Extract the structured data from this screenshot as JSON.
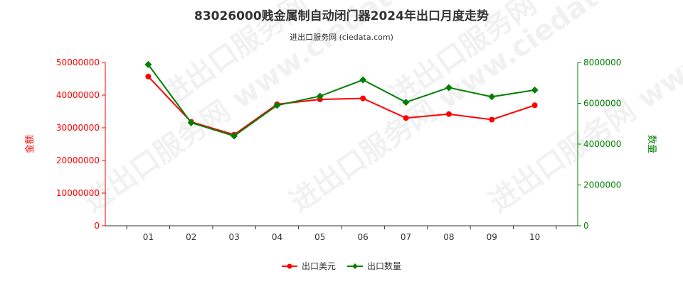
{
  "chart_data": {
    "type": "line",
    "title": "83026000贱金属制自动闭门器2024年出口月度走势",
    "subtitle": "进出口服务网 (ciedata.com)",
    "categories": [
      "01",
      "02",
      "03",
      "04",
      "05",
      "06",
      "07",
      "08",
      "09",
      "10"
    ],
    "ylabel_left": "金额",
    "ylabel_right": "数量",
    "ylim_left": [
      0,
      50000000
    ],
    "ylim_right": [
      0,
      8000000
    ],
    "yticks_left": [
      "0",
      "10000000",
      "20000000",
      "30000000",
      "40000000",
      "50000000"
    ],
    "yticks_right": [
      "0",
      "2000000",
      "4000000",
      "6000000",
      "8000000"
    ],
    "series": [
      {
        "name": "出口美元",
        "axis": "left",
        "color": "#ff0000",
        "marker": "circle",
        "values": [
          45700000,
          31800000,
          27900000,
          37200000,
          38700000,
          39000000,
          33000000,
          34200000,
          32500000,
          36900000
        ]
      },
      {
        "name": "出口数量",
        "axis": "right",
        "color": "#008000",
        "marker": "diamond",
        "values": [
          7900000,
          5050000,
          4400000,
          5900000,
          6350000,
          7150000,
          6050000,
          6770000,
          6320000,
          6650000
        ]
      }
    ],
    "watermark": "进出口服务网 www.ciedata.com",
    "grid": false,
    "legend_position": "bottom-center"
  }
}
